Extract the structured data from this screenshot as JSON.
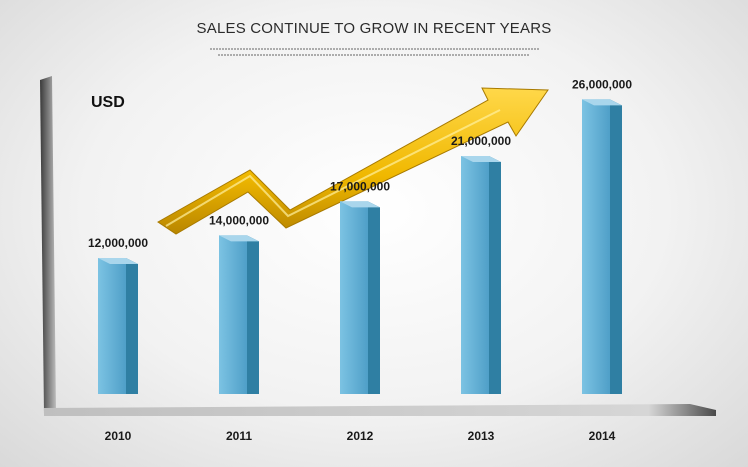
{
  "chart_data": {
    "type": "bar",
    "title": "SALES CONTINUE TO GROW IN RECENT YEARS",
    "unit_label": "USD",
    "categories": [
      "2010",
      "2011",
      "2012",
      "2013",
      "2014"
    ],
    "values": [
      12000000,
      14000000,
      17000000,
      21000000,
      26000000
    ],
    "value_labels": [
      "12,000,000",
      "14,000,000",
      "17,000,000",
      "21,000,000",
      "26,000,000"
    ],
    "ylim": [
      0,
      30000000
    ],
    "grid": false,
    "legend": "none",
    "trend_arrow": "up-right"
  },
  "colors": {
    "bar_front": "#5fb0d6",
    "bar_side": "#2f7fa3",
    "bar_top": "#a9d6ec",
    "arrow": "#f2c200",
    "arrow_dark": "#b88a00",
    "axis_dark": "#4a4a4a",
    "axis_light": "#c9c9c9"
  }
}
